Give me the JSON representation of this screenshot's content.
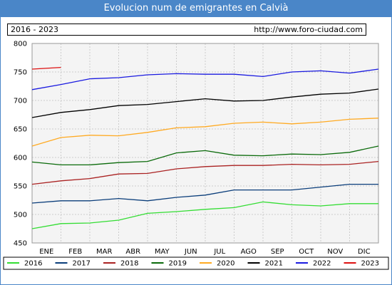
{
  "title": "Evolucion num de emigrantes en Calvià",
  "period": "2016 - 2023",
  "url": "http://www.foro-ciudad.com",
  "chart_data": {
    "type": "line",
    "categories": [
      "ENE",
      "FEB",
      "MAR",
      "ABR",
      "MAY",
      "JUN",
      "JUL",
      "AGO",
      "SEP",
      "OCT",
      "NOV",
      "DIC"
    ],
    "x": [
      0.5,
      1.5,
      2.5,
      3.5,
      4.5,
      5.5,
      6.5,
      7.5,
      8.5,
      9.5,
      10.5,
      11.5
    ],
    "ylim": [
      450,
      800
    ],
    "yticks": [
      450,
      500,
      550,
      600,
      650,
      700,
      750,
      800
    ],
    "grid": true,
    "legend_position": "bottom",
    "series": [
      {
        "name": "2016",
        "color": "#33dd33",
        "x": [
          0,
          1,
          2,
          3,
          4,
          5,
          6,
          7,
          8,
          9,
          10,
          11,
          12
        ],
        "values": [
          475,
          484,
          485,
          490,
          502,
          505,
          509,
          512,
          522,
          517,
          515,
          519,
          519
        ]
      },
      {
        "name": "2017",
        "color": "#0a3d7a",
        "x": [
          0,
          1,
          2,
          3,
          4,
          5,
          6,
          7,
          8,
          9,
          10,
          11,
          12
        ],
        "values": [
          520,
          524,
          524,
          528,
          524,
          530,
          534,
          543,
          543,
          543,
          548,
          553,
          553
        ]
      },
      {
        "name": "2018",
        "color": "#aa2222",
        "x": [
          0,
          1,
          2,
          3,
          4,
          5,
          6,
          7,
          8,
          9,
          10,
          11,
          12
        ],
        "values": [
          553,
          559,
          563,
          571,
          572,
          580,
          584,
          586,
          586,
          588,
          587,
          588,
          593
        ]
      },
      {
        "name": "2019",
        "color": "#0a6a0a",
        "x": [
          0,
          1,
          2,
          3,
          4,
          5,
          6,
          7,
          8,
          9,
          10,
          11,
          12
        ],
        "values": [
          592,
          587,
          587,
          591,
          593,
          608,
          612,
          604,
          603,
          606,
          605,
          609,
          620
        ]
      },
      {
        "name": "2020",
        "color": "#ffaa22",
        "x": [
          0,
          1,
          2,
          3,
          4,
          5,
          6,
          7,
          8,
          9,
          10,
          11,
          12
        ],
        "values": [
          620,
          635,
          639,
          638,
          644,
          652,
          654,
          660,
          662,
          659,
          662,
          667,
          669
        ]
      },
      {
        "name": "2021",
        "color": "#000000",
        "x": [
          0,
          1,
          2,
          3,
          4,
          5,
          6,
          7,
          8,
          9,
          10,
          11,
          12
        ],
        "values": [
          670,
          679,
          684,
          691,
          693,
          698,
          703,
          699,
          700,
          706,
          711,
          713,
          720
        ]
      },
      {
        "name": "2022",
        "color": "#1a1ae0",
        "x": [
          0,
          1,
          2,
          3,
          4,
          5,
          6,
          7,
          8,
          9,
          10,
          11,
          12
        ],
        "values": [
          719,
          728,
          738,
          740,
          745,
          747,
          746,
          746,
          742,
          750,
          752,
          748,
          755
        ]
      },
      {
        "name": "2023",
        "color": "#dd1111",
        "x": [
          0,
          1
        ],
        "values": [
          755,
          758
        ]
      }
    ]
  }
}
